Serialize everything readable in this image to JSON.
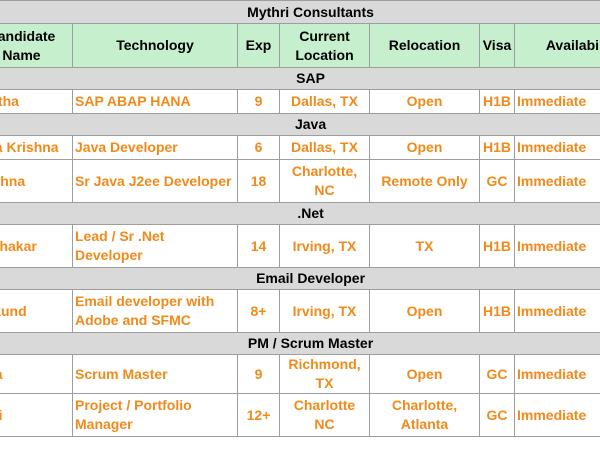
{
  "title": "Mythri Consultants",
  "headers": {
    "name": "Candidate Name",
    "tech": "Technology",
    "exp": "Exp",
    "location": "Current Location",
    "relocation": "Relocation",
    "visa": "Visa",
    "availability": "Availability"
  },
  "sections": [
    {
      "title": "SAP",
      "rows": [
        {
          "name": "Seetha",
          "tech": "SAP ABAP HANA",
          "exp": "9",
          "location": "Dallas, TX",
          "relocation": "Open",
          "visa": "H1B",
          "availability": "Immediate"
        }
      ]
    },
    {
      "title": "Java",
      "rows": [
        {
          "name": "Bala Krishna",
          "tech": "Java Developer",
          "exp": "6",
          "location": "Dallas, TX",
          "relocation": "Open",
          "visa": "H1B",
          "availability": "Immediate"
        },
        {
          "name": "Krishna",
          "tech": "Sr Java J2ee Developer",
          "exp": "18",
          "location": "Charlotte, NC",
          "relocation": "Remote Only",
          "visa": "GC",
          "availability": "Immediate"
        }
      ]
    },
    {
      "title": ".Net",
      "rows": [
        {
          "name": "Sudhakar",
          "tech": "Lead / Sr .Net Developer",
          "exp": "14",
          "location": "Irving, TX",
          "relocation": "TX",
          "visa": "H1B",
          "availability": "Immediate"
        }
      ]
    },
    {
      "title": "Email Developer",
      "rows": [
        {
          "name": "Mukund",
          "tech": "Email developer with Adobe and SFMC",
          "exp": "8+",
          "location": "Irving, TX",
          "relocation": "Open",
          "visa": "H1B",
          "availability": "Immediate"
        }
      ]
    },
    {
      "title": "PM / Scrum Master",
      "rows": [
        {
          "name": "Raja",
          "tech": "Scrum Master",
          "exp": "9",
          "location": "Richmond, TX",
          "relocation": "Open",
          "visa": "GC",
          "availability": "Immediate"
        },
        {
          "name": "Devi",
          "tech": "Project / Portfolio Manager",
          "exp": "12+",
          "location": "Charlotte NC",
          "relocation": "Charlotte, Atlanta",
          "visa": "GC",
          "availability": "Immediate"
        }
      ]
    }
  ]
}
